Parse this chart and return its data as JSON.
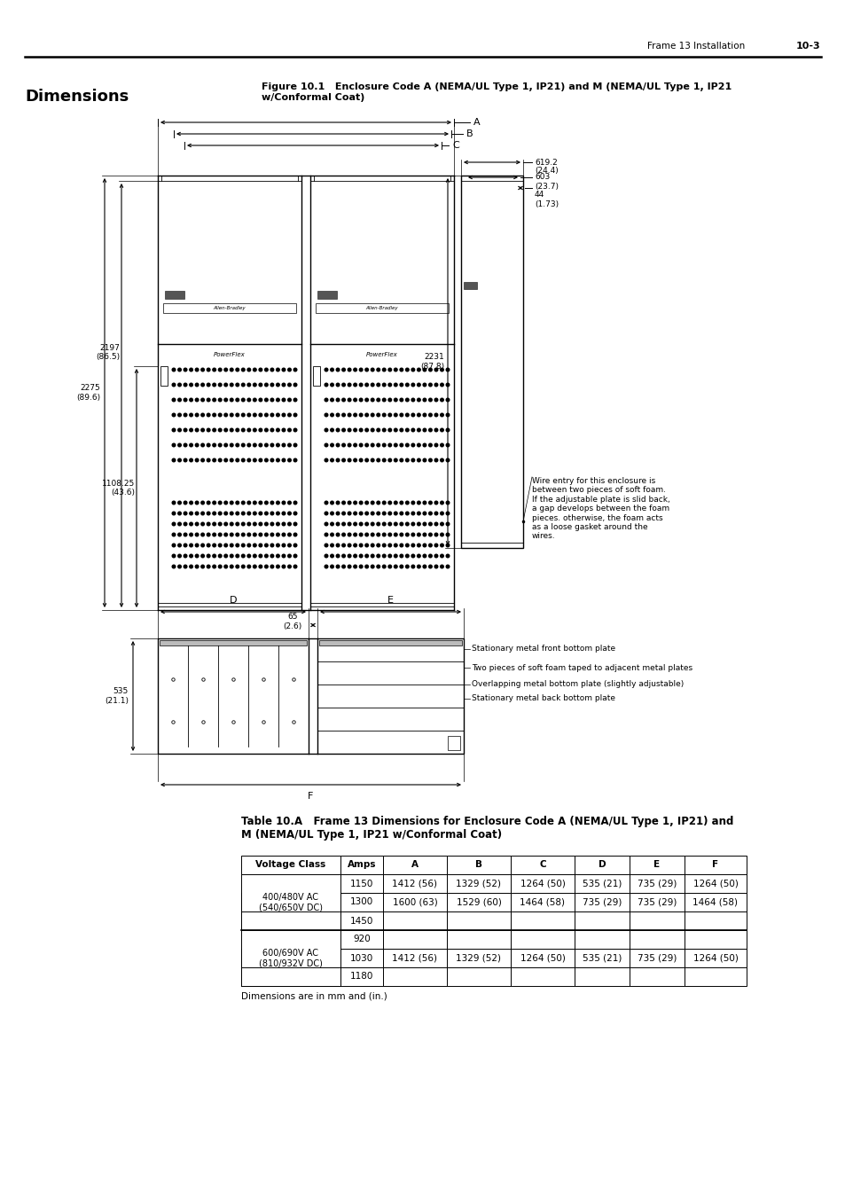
{
  "page_header_right": "Frame 13 Installation",
  "page_number": "10-3",
  "section_title": "Dimensions",
  "figure_title": "Figure 10.1   Enclosure Code A (NEMA/UL Type 1, IP21) and M (NEMA/UL Type 1, IP21\nw/Conformal Coat)",
  "table_title": "Table 10.A   Frame 13 Dimensions for Enclosure Code A (NEMA/UL Type 1, IP21) and\nM (NEMA/UL Type 1, IP21 w/Conformal Coat)",
  "table_note": "Dimensions are in mm and (in.)",
  "wire_entry_note": "Wire entry for this enclosure is\nbetween two pieces of soft foam.\nIf the adjustable plate is slid back,\na gap develops between the foam\npieces. otherwise, the foam acts\nas a loose gasket around the\nwires.",
  "labels_bottom": [
    "Stationary metal front bottom plate",
    "Two pieces of soft foam taped to adjacent metal plates",
    "Overlapping metal bottom plate (slightly adjustable)",
    "Stationary metal back bottom plate"
  ],
  "table_headers": [
    "Voltage Class",
    "Amps",
    "A",
    "B",
    "C",
    "D",
    "E",
    "F"
  ],
  "table_rows": [
    [
      "400/480V AC\n(540/650V DC)",
      "1150",
      "1412 (56)",
      "1329 (52)",
      "1264 (50)",
      "535 (21)",
      "735 (29)",
      "1264 (50)"
    ],
    [
      "",
      "1300",
      "1600 (63)",
      "1529 (60)",
      "1464 (58)",
      "735 (29)",
      "735 (29)",
      "1464 (58)"
    ],
    [
      "",
      "1450",
      "",
      "",
      "",
      "",
      "",
      ""
    ],
    [
      "600/690V AC\n(810/932V DC)",
      "920",
      "",
      "",
      "",
      "",
      "",
      ""
    ],
    [
      "",
      "1030",
      "1412 (56)",
      "1329 (52)",
      "1264 (50)",
      "535 (21)",
      "735 (29)",
      "1264 (50)"
    ],
    [
      "",
      "1180",
      "",
      "",
      "",
      "",
      "",
      ""
    ]
  ],
  "voltage_class_1": "400/480V AC\n(540/650V DC)",
  "voltage_class_2": "600/690V AC\n(810/932V DC)"
}
